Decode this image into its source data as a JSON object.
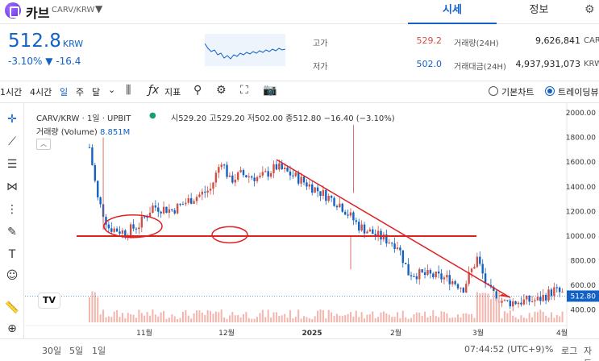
{
  "header": {
    "coin_name": "카브",
    "pair": "CARV/KRW",
    "tab_quote": "시세",
    "tab_info": "정보"
  },
  "summary": {
    "price": "512.8",
    "unit": "KRW",
    "change_pct": "-3.10%",
    "change_abs": "▼ -16.4",
    "high_label": "고가",
    "high_value": "529.2",
    "low_label": "저가",
    "low_value": "502.0",
    "volume_label": "거래량(24H)",
    "volume_value": "9,626,841",
    "volume_unit": "CARV",
    "amount_label": "거래대금(24H)",
    "amount_value": "4,937,931,073",
    "amount_unit": "KRW"
  },
  "toolbar": {
    "intervals": [
      "1시간",
      "4시간",
      "일",
      "주",
      "달"
    ],
    "active_interval": "일",
    "indicator_label": "지표",
    "basic_chart": "기본차트",
    "trading_view": "트레이딩뷰"
  },
  "chart_header": {
    "symbol_line": "CARV/KRW · 1일 · UPBIT",
    "ohlc": [
      "시529.20",
      "고529.20",
      "저502.00",
      "종512.80",
      "−16.40 (−3.10%)"
    ],
    "volume_label": "거래량 (Volume)",
    "volume_value": "8.851M",
    "logo_text": "TV"
  },
  "bottom": {
    "ranges": [
      "30일",
      "5일",
      "1일"
    ],
    "time": "07:44:52 (UTC+9)",
    "pct": "%",
    "log": "로그",
    "auto": "자동"
  },
  "chart_data": {
    "type": "candlestick",
    "x_ticks": [
      "11월",
      "12월",
      "2025",
      "2월",
      "3월",
      "4월"
    ],
    "y_ticks": [
      2000,
      1800,
      1600,
      1400,
      1200,
      1000,
      800,
      600,
      400
    ],
    "ylim": [
      300,
      2000
    ],
    "last_price_label": "512.80",
    "last_price": 512.8,
    "support_level": 1000,
    "colors": {
      "up": "#d24f45",
      "down": "#1261c4",
      "annotation": "#e02020",
      "volume": "#f3b5ac"
    }
  },
  "colors": {
    "accent_blue": "#1261c4",
    "accent_red": "#d24f45"
  }
}
